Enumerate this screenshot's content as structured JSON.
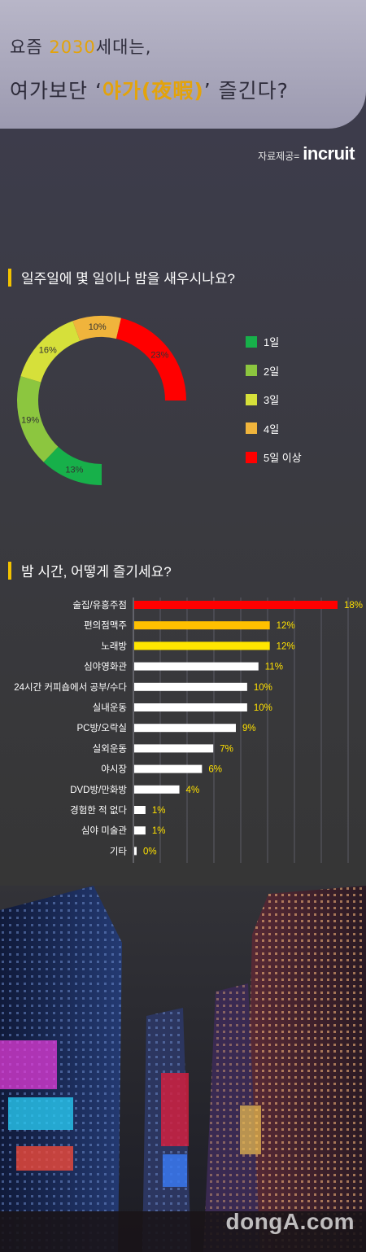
{
  "header": {
    "line1_a": "요즘 ",
    "line1_b": "2030",
    "line1_c": "세대는,",
    "line2_a": "여가보단 ‘",
    "line2_b": "야가(夜暇)",
    "line2_c": "’ 즐긴다?"
  },
  "source": {
    "label": "자료제공=",
    "logo": "incruit"
  },
  "watermark": "dongA.com",
  "colors": {
    "accent": "#f2c200",
    "header_bg": "#aeacbf",
    "bar_highlight": "#ff0000"
  },
  "chart_data": [
    {
      "type": "pie",
      "title": "일주일에 몇 일이나 밤을 새우시나요?",
      "categories": [
        "1일",
        "2일",
        "3일",
        "4일",
        "5일 이상"
      ],
      "values": [
        13,
        19,
        16,
        10,
        23
      ],
      "value_labels": [
        "13%",
        "19%",
        "16%",
        "10%",
        "23%"
      ],
      "colors": [
        "#17b04a",
        "#8cc63f",
        "#d6e03a",
        "#f0b43c",
        "#ff0000"
      ],
      "legend": "right"
    },
    {
      "type": "bar",
      "orientation": "horizontal",
      "title": "밤 시간, 어떻게 즐기세요?",
      "categories": [
        "술집/유흥주점",
        "편의점맥주",
        "노래방",
        "심야영화관",
        "24시간 커피숍에서 공부/수다",
        "실내운동",
        "PC방/오락실",
        "실외운동",
        "야시장",
        "DVD방/만화방",
        "경험한 적 없다",
        "심야 미술관",
        "기타"
      ],
      "values": [
        18,
        12,
        12,
        11,
        10,
        10,
        9,
        7,
        6,
        4,
        1,
        1,
        0
      ],
      "value_labels": [
        "18%",
        "12%",
        "12%",
        "11%",
        "10%",
        "10%",
        "9%",
        "7%",
        "6%",
        "4%",
        "1%",
        "1%",
        "0%"
      ],
      "colors": [
        "#ff0000",
        "#ffc000",
        "#ffe600",
        "#ffffff",
        "#ffffff",
        "#ffffff",
        "#ffffff",
        "#ffffff",
        "#ffffff",
        "#ffffff",
        "#ffffff",
        "#ffffff",
        "#ffffff"
      ],
      "grid": true
    }
  ]
}
